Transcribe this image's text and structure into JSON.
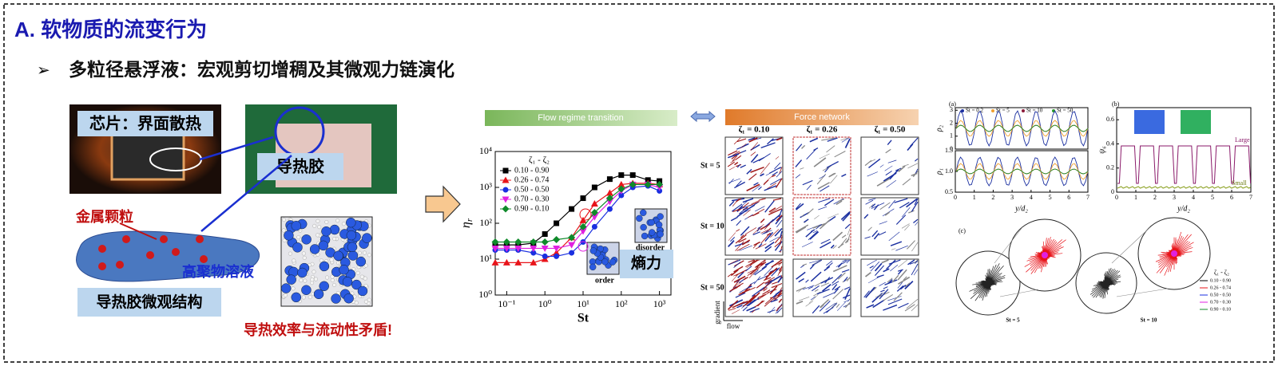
{
  "header": {
    "title": "A. 软物质的流变行为",
    "subtitle": "多粒径悬浮液：宏观剪切增稠及其微观力链演化"
  },
  "illustration": {
    "chip_label": "芯片：界面散热",
    "glue_label": "导热胶",
    "particle_label": "金属颗粒",
    "polymer_label": "高聚物溶液",
    "structure_label": "导热胶微观结构",
    "conflict": "导热效率与流动性矛盾!"
  },
  "flow_banner": "Flow regime transition",
  "chart_data": {
    "type": "line",
    "xlabel": "St",
    "ylabel": "η",
    "ylabel_sub": "r",
    "log_x": true,
    "log_y": true,
    "legend_title": "ζ₁ - ζ₂",
    "x": [
      0.05,
      0.1,
      0.2,
      0.5,
      1,
      2,
      5,
      10,
      20,
      50,
      100,
      200,
      500,
      1000
    ],
    "xlim": [
      0.05,
      2000
    ],
    "ylim": [
      1,
      10000
    ],
    "xticks": [
      {
        "value": 0.1,
        "label": "10⁻¹"
      },
      {
        "value": 1,
        "label": "10⁰"
      },
      {
        "value": 10,
        "label": "10¹"
      },
      {
        "value": 100,
        "label": "10²"
      },
      {
        "value": 1000,
        "label": "10³"
      }
    ],
    "yticks": [
      {
        "value": 1,
        "label": "10⁰"
      },
      {
        "value": 10,
        "label": "10¹"
      },
      {
        "value": 100,
        "label": "10²"
      },
      {
        "value": 1000,
        "label": "10³"
      },
      {
        "value": 10000,
        "label": "10⁴"
      }
    ],
    "series": [
      {
        "name": "0.10 - 0.90",
        "color": "#000000",
        "marker": "square",
        "values": [
          25,
          25,
          25,
          28,
          50,
          100,
          250,
          500,
          1000,
          1700,
          2200,
          2200,
          1600,
          1500
        ]
      },
      {
        "name": "0.26 - 0.74",
        "color": "#e8141a",
        "marker": "triangle",
        "values": [
          8,
          8,
          8,
          8,
          10,
          15,
          40,
          120,
          350,
          700,
          1200,
          1300,
          1300,
          1200
        ]
      },
      {
        "name": "0.50 - 0.50",
        "color": "#1a2fe0",
        "marker": "circle",
        "values": [
          18,
          18,
          18,
          15,
          12,
          12,
          15,
          30,
          80,
          250,
          600,
          1000,
          1100,
          800
        ]
      },
      {
        "name": "0.70 - 0.30",
        "color": "#e020e0",
        "marker": "triangle-down",
        "values": [
          20,
          20,
          20,
          20,
          20,
          20,
          25,
          60,
          150,
          400,
          800,
          1200,
          1200,
          1000
        ]
      },
      {
        "name": "0.90 - 0.10",
        "color": "#0f8a2a",
        "marker": "diamond",
        "values": [
          30,
          30,
          30,
          30,
          30,
          35,
          40,
          80,
          200,
          500,
          900,
          1200,
          1200,
          1200
        ]
      }
    ],
    "annotations": {
      "disorder": "disorder",
      "order": "order",
      "entropy": "熵力"
    }
  },
  "force_network": {
    "banner": "Force network",
    "columns": [
      "ζ₁ = 0.10",
      "ζ₁ = 0.26",
      "ζ₁ = 0.50"
    ],
    "rows": [
      "St = 5",
      "St = 10",
      "St = 50"
    ],
    "axis_gradient": "gradient",
    "axis_flow": "flow"
  },
  "panel_a": {
    "label": "(a)",
    "legend": [
      "St = 0.2",
      "St = 5",
      "St = 10",
      "St = 50"
    ],
    "legend_colors": [
      "#1a2fa0",
      "#f0a030",
      "#8a1a3a",
      "#2a9a2a"
    ],
    "xlabel": "y/d₂",
    "xticks": [
      0,
      1,
      2,
      3,
      4,
      5,
      6,
      7
    ],
    "xlim": [
      0,
      7
    ],
    "top": {
      "ylabel": "ρ₂",
      "yticks": [
        0,
        1,
        2,
        3
      ],
      "ylim": [
        0,
        3.2
      ]
    },
    "bottom": {
      "ylabel": "ρ₁",
      "yticks": [
        0.5,
        {
          "value": 1,
          "label": "1.0"
        },
        1.5
      ],
      "ylim": [
        0.5,
        1.5
      ]
    }
  },
  "panel_b": {
    "label": "(b)",
    "ylabel": "ψ₆",
    "xlabel": "y/d₂",
    "xticks": [
      0,
      1,
      2,
      3,
      4,
      5,
      6,
      7
    ],
    "xlim": [
      0,
      7
    ],
    "yticks": [
      0,
      0.2,
      0.4,
      0.6
    ],
    "ylim": [
      0,
      0.7
    ],
    "large": "Large",
    "small": "Small"
  },
  "panel_c": {
    "label": "(c)",
    "legend_title": "ζ₁ - ζ₂",
    "legend": [
      "0.10 - 0.90",
      "0.26 - 0.74",
      "0.50 - 0.50",
      "0.70 - 0.30",
      "0.90 - 0.10"
    ],
    "legend_colors": [
      "#000000",
      "#e8141a",
      "#1a2fe0",
      "#e020e0",
      "#0f8a2a"
    ],
    "captions": [
      "St = 5",
      "St = 10"
    ]
  }
}
